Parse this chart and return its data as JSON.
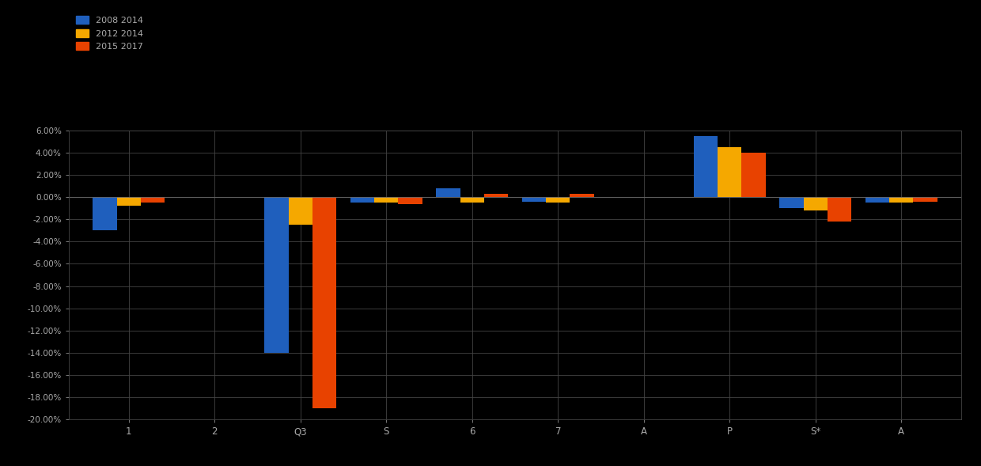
{
  "categories": [
    "1",
    "2",
    "Q3",
    "S",
    "6",
    "7",
    "A",
    "P",
    "S*",
    "A"
  ],
  "series1": [
    -3.0,
    0.0,
    -14.0,
    -0.5,
    0.8,
    -0.4,
    0.0,
    5.5,
    -1.0,
    -0.5
  ],
  "series2": [
    -0.8,
    0.0,
    -2.5,
    -0.5,
    -0.5,
    -0.5,
    0.0,
    4.5,
    -1.2,
    -0.5
  ],
  "series3": [
    -0.5,
    0.0,
    -19.0,
    -0.6,
    0.3,
    0.3,
    0.0,
    4.0,
    -2.2,
    -0.4
  ],
  "color1": "#1f5fbd",
  "color2": "#f5a800",
  "color3": "#e84200",
  "legend1": "2008 2014",
  "legend2": "2012 2014",
  "legend3": "2015 2017",
  "ylim_min": -20,
  "ylim_max": 6,
  "ytick_step": 2,
  "background_color": "#000000",
  "grid_color": "#444444",
  "text_color": "#aaaaaa",
  "bar_width": 0.28
}
